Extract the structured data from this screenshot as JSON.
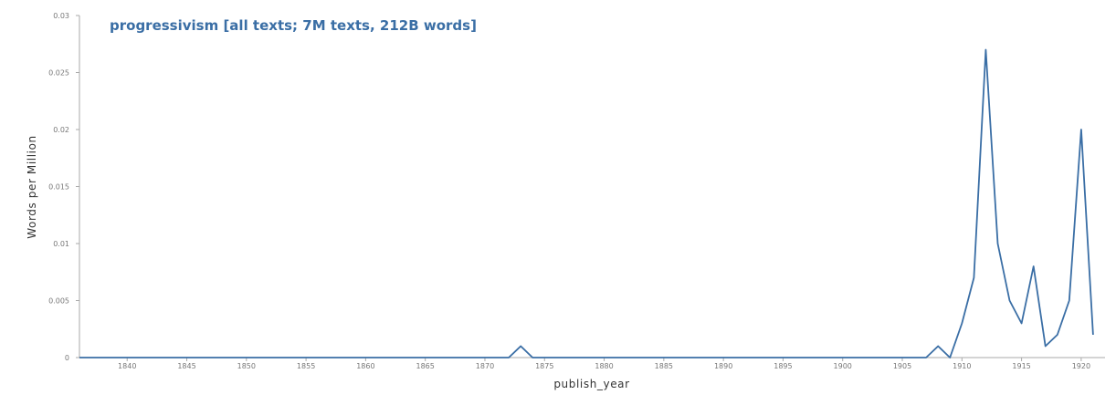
{
  "chart_data": {
    "type": "line",
    "title": "progressivism [all texts; 7M texts, 212B words]",
    "xlabel": "publish_year",
    "ylabel": "Words per Million",
    "xlim": [
      1836,
      1922
    ],
    "ylim": [
      0,
      0.03
    ],
    "x_ticks": [
      1840,
      1845,
      1850,
      1855,
      1860,
      1865,
      1870,
      1875,
      1880,
      1885,
      1890,
      1895,
      1900,
      1905,
      1910,
      1915,
      1920
    ],
    "y_ticks": [
      0,
      0.005,
      0.01,
      0.015,
      0.02,
      0.025,
      0.03
    ],
    "y_tick_labels": [
      "0",
      "0.005",
      "0.01",
      "0.015",
      "0.02",
      "0.025",
      "0.03"
    ],
    "grid": false,
    "line_color": "#3a6ea5",
    "series": [
      {
        "x": [
          1836,
          1872,
          1873,
          1874,
          1907,
          1908,
          1909,
          1910,
          1911,
          1912,
          1913,
          1914,
          1915,
          1916,
          1917,
          1918,
          1919,
          1920,
          1921
        ],
        "values": [
          0,
          0,
          0.001,
          0,
          0,
          0.001,
          0,
          0.003,
          0.007,
          0.027,
          0.01,
          0.005,
          0.003,
          0.008,
          0.001,
          0.002,
          0.005,
          0.02,
          0.002
        ]
      }
    ]
  }
}
